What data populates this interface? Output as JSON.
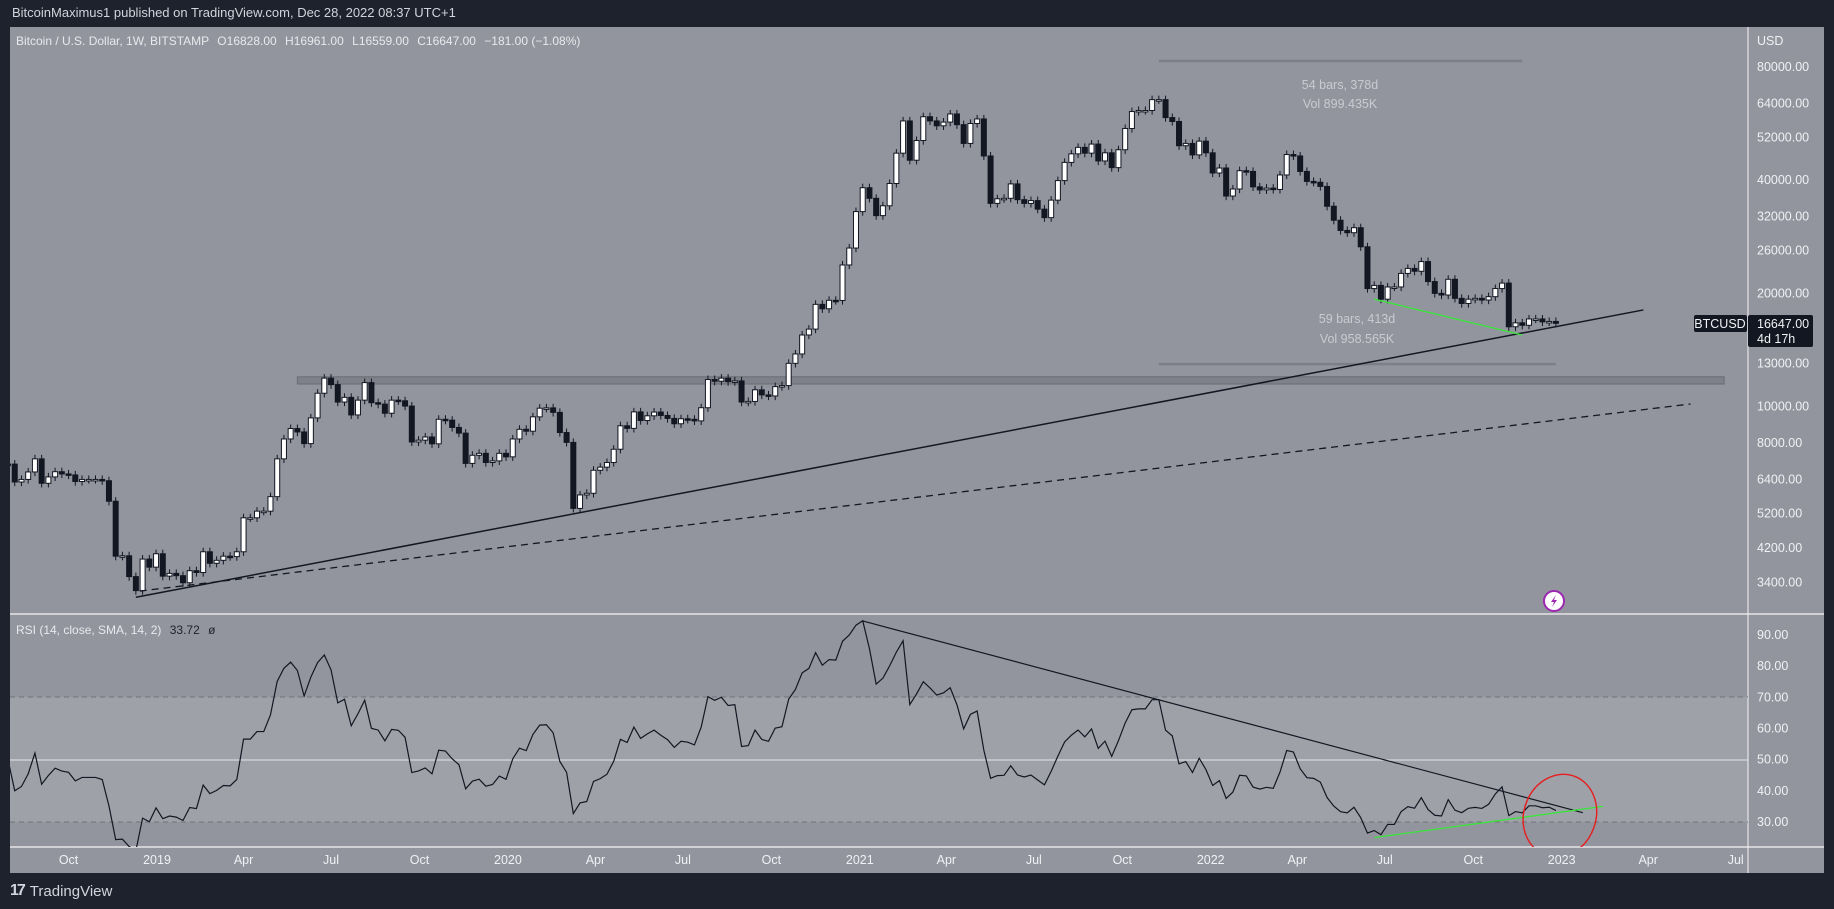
{
  "header": {
    "published": "BitcoinMaximus1 published on TradingView.com, Dec 28, 2022 08:37 UTC+1"
  },
  "legend": {
    "symbol": "Bitcoin / U.S. Dollar, 1W, BITSTAMP",
    "o_label": "O",
    "o": "16828.00",
    "h_label": "H",
    "h": "16961.00",
    "l_label": "L",
    "l": "16559.00",
    "c_label": "C",
    "c": "16647.00",
    "change": "−181.00 (−1.08%)"
  },
  "rsi_legend": {
    "label": "RSI (14, close, SMA, 14, 2)",
    "value": "33.72",
    "extra": "ø"
  },
  "price_scale": {
    "currency": "USD",
    "ticks": [
      80000,
      64000,
      52000,
      40000,
      32000,
      26000,
      20000,
      13000,
      10000,
      8000,
      6400,
      5200,
      4200,
      3400
    ],
    "tick_labels": [
      "80000.00",
      "64000.00",
      "52000.00",
      "40000.00",
      "32000.00",
      "26000.00",
      "20000.00",
      "13000.00",
      "10000.00",
      "8000.00",
      "6400.00",
      "5200.00",
      "4200.00",
      "3400.00"
    ],
    "scale": "log"
  },
  "last_price": {
    "symbol": "BTCUSD",
    "price": "16647.00",
    "countdown": "4d 17h"
  },
  "rsi_scale": {
    "ticks": [
      90,
      80,
      70,
      60,
      50,
      40,
      30
    ],
    "tick_labels": [
      "90.00",
      "80.00",
      "70.00",
      "60.00",
      "50.00",
      "40.00",
      "30.00"
    ],
    "upper_band": 70,
    "mid": 50,
    "lower_band": 30
  },
  "time_axis": [
    {
      "label": "Oct",
      "date": "2018-10-01"
    },
    {
      "label": "2019",
      "date": "2019-01-01"
    },
    {
      "label": "Apr",
      "date": "2019-04-01"
    },
    {
      "label": "Jul",
      "date": "2019-07-01"
    },
    {
      "label": "Oct",
      "date": "2019-10-01"
    },
    {
      "label": "2020",
      "date": "2020-01-01"
    },
    {
      "label": "Apr",
      "date": "2020-04-01"
    },
    {
      "label": "Jul",
      "date": "2020-07-01"
    },
    {
      "label": "Oct",
      "date": "2020-10-01"
    },
    {
      "label": "2021",
      "date": "2021-01-01"
    },
    {
      "label": "Apr",
      "date": "2021-04-01"
    },
    {
      "label": "Jul",
      "date": "2021-07-01"
    },
    {
      "label": "Oct",
      "date": "2021-10-01"
    },
    {
      "label": "2022",
      "date": "2022-01-01"
    },
    {
      "label": "Apr",
      "date": "2022-04-01"
    },
    {
      "label": "Jul",
      "date": "2022-07-01"
    },
    {
      "label": "Oct",
      "date": "2022-10-01"
    },
    {
      "label": "2023",
      "date": "2023-01-01"
    },
    {
      "label": "Apr",
      "date": "2023-04-01"
    },
    {
      "label": "Jul",
      "date": "2023-07-01"
    }
  ],
  "chart_data": {
    "type": "candlestick",
    "symbol": "BTCUSD",
    "interval": "1W",
    "first_week": "2018-07-30",
    "close": [
      7030,
      6300,
      6400,
      6700,
      7260,
      6250,
      6500,
      6710,
      6620,
      6580,
      6320,
      6400,
      6400,
      6400,
      6350,
      5600,
      4000,
      4010,
      3530,
      3240,
      3930,
      3740,
      4060,
      3540,
      3600,
      3550,
      3400,
      3660,
      3620,
      4110,
      3830,
      3900,
      4000,
      3990,
      4110,
      5060,
      5060,
      5270,
      5270,
      5760,
      7260,
      8200,
      8740,
      8560,
      7970,
      9330,
      10850,
      11900,
      11440,
      10280,
      10580,
      9500,
      10400,
      11580,
      10240,
      10150,
      9600,
      10400,
      10360,
      10030,
      8050,
      8140,
      8300,
      7960,
      9250,
      9200,
      8800,
      8500,
      7060,
      7420,
      7510,
      7100,
      7170,
      7510,
      7350,
      8200,
      8700,
      8600,
      9390,
      9900,
      9920,
      9650,
      8530,
      8030,
      5360,
      5820,
      5880,
      6770,
      6900,
      7100,
      7700,
      8890,
      8750,
      9680,
      9180,
      9450,
      9670,
      9470,
      9300,
      9000,
      9280,
      9250,
      9160,
      9930,
      11800,
      11680,
      11900,
      11650,
      11700,
      10280,
      10320,
      11080,
      10740,
      10670,
      11300,
      11370,
      13030,
      13800,
      15500,
      16070,
      18700,
      18200,
      19170,
      19150,
      23800,
      26400,
      33000,
      38200,
      35800,
      32200,
      34200,
      39200,
      47200,
      57500,
      45200,
      51000,
      59000,
      57500,
      55800,
      57100,
      60000,
      56200,
      50100,
      56600,
      58200,
      46400,
      34700,
      35700,
      35800,
      39100,
      35500,
      34700,
      35300,
      33500,
      31800,
      35400,
      39900,
      44600,
      47000,
      48900,
      47200,
      49900,
      45000,
      47300,
      43200,
      48200,
      54900,
      60900,
      61300,
      61300,
      65500,
      65500,
      58700,
      57300,
      49400,
      50100,
      46700,
      50800,
      47300,
      41800,
      43100,
      36300,
      37900,
      42400,
      42200,
      38400,
      37700,
      38100,
      37800,
      41300,
      46800,
      46400,
      42200,
      39700,
      39500,
      38500,
      34100,
      31300,
      29400,
      29000,
      29900,
      26600,
      20600,
      21000,
      19300,
      20800,
      20800,
      22600,
      23300,
      22900,
      24300,
      21500,
      20000,
      19800,
      21800,
      19400,
      18800,
      19300,
      19400,
      19200,
      19600,
      20600,
      21300,
      16300,
      16700,
      16450,
      17100,
      17100,
      16800,
      16840,
      16647
    ],
    "rsi": {
      "period": 14,
      "source": "close",
      "last": 33.72
    },
    "drawings": {
      "support_trendline": {
        "from": {
          "date": "2018-12-10",
          "price": 3110
        },
        "to": {
          "date": "2023-03-27",
          "price": 18070
        },
        "style": "solid",
        "color": "#131722"
      },
      "parallel_dashed": {
        "from": {
          "date": "2018-12-14",
          "price": 3230
        },
        "to": {
          "date": "2023-05-15",
          "price": 10160
        },
        "style": "dashed",
        "color": "#131722"
      },
      "resistance_zone": {
        "from_date": "2019-05-27",
        "to_date": "2023-06-19",
        "top": 12000,
        "bottom": 11480,
        "color": "#7a7c85"
      },
      "price_divergence_line": {
        "from": {
          "date": "2022-06-20",
          "price": 19300
        },
        "to": {
          "date": "2022-11-21",
          "price": 15500
        },
        "color": "#39e639"
      },
      "measure_top": {
        "from_date": "2021-11-08",
        "to_date": "2022-11-21",
        "price": 83000,
        "bars": "54 bars, 378d",
        "vol": "Vol 899.435K"
      },
      "measure_bottom": {
        "from_date": "2021-11-08",
        "to_date": "2022-12-26",
        "price": 12970,
        "bars": "59 bars, 413d",
        "vol": "Vol 958.565K"
      },
      "rsi_trendline": {
        "from": {
          "date": "2021-01-04",
          "rsi": 94.5
        },
        "to": {
          "date": "2023-01-23",
          "rsi": 33
        },
        "color": "#131722"
      },
      "rsi_support_line": {
        "from": {
          "date": "2022-06-20",
          "rsi": 25
        },
        "to": {
          "date": "2023-02-13",
          "rsi": 35
        },
        "color": "#39e639"
      },
      "rsi_circle": {
        "date": "2022-12-26",
        "rsi": 33,
        "color": "#e61e1e"
      }
    }
  },
  "colors": {
    "pane": "#93959e",
    "rsi_band": "#9fa1a9",
    "bull": "#ffffff",
    "bear": "#131722",
    "frame": "#1e222d",
    "lightning": "#9c27b0"
  },
  "icons": {
    "lightning": "lightning-icon"
  },
  "footer": {
    "brand": "TradingView"
  }
}
